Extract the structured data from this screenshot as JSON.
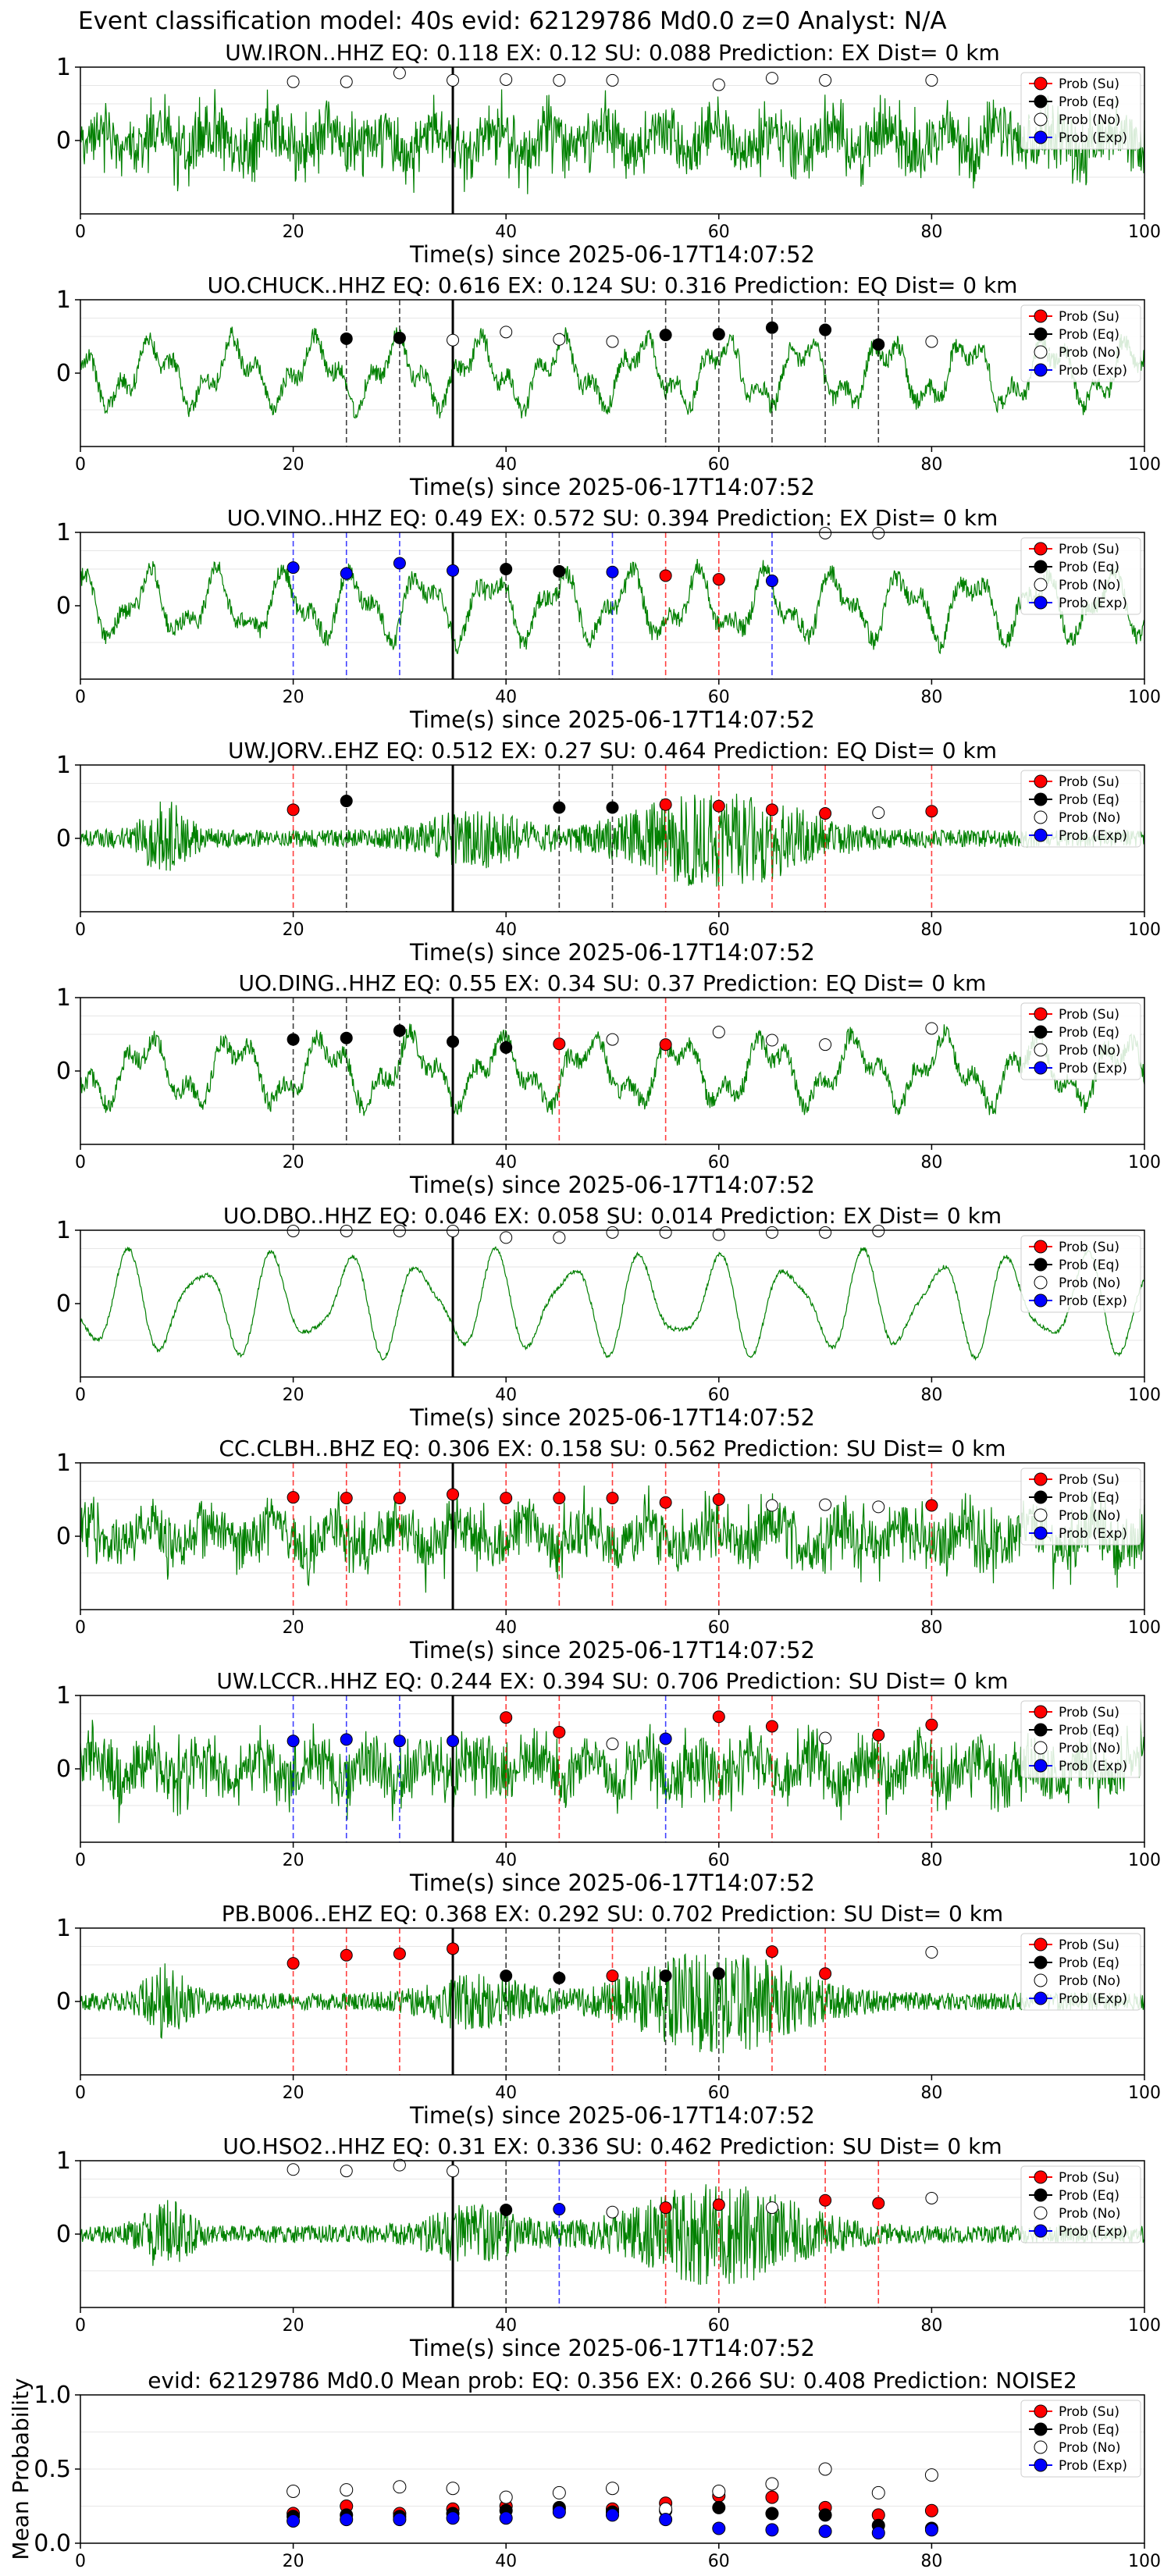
{
  "suptitle": "Event classification model: 40s evid: 62129786 Md0.0 z=0 Analyst: N/A",
  "xlabel": "Time(s) since 2025-06-17T14:07:52",
  "colors": {
    "waveform": "#008000",
    "su": "#ff0000",
    "eq": "#000000",
    "no": "#ffffff",
    "exp": "#0000ff",
    "origin_line": "#000000",
    "grid": "#e6e6e6"
  },
  "legend": {
    "placement": "top-right",
    "labels": [
      "Prob (Su)",
      "Prob (Eq)",
      "Prob (No)",
      "Prob (Exp)"
    ]
  },
  "chart_data": [
    {
      "type": "line",
      "station": "UW.IRON..HHZ",
      "title": "UW.IRON..HHZ   EQ: 0.118   EX: 0.12   SU: 0.088   Prediction: EX    Dist= 0 km",
      "xlim": [
        0,
        100
      ],
      "ylim": [
        -1,
        1
      ],
      "xticks": [
        0,
        20,
        40,
        60,
        80,
        100
      ],
      "yticks": [
        0,
        1
      ],
      "origin_time": 35,
      "waveform_style": "noisy",
      "markers": [
        {
          "t": 20,
          "p": 0.8,
          "cls": "no"
        },
        {
          "t": 25,
          "p": 0.8,
          "cls": "no"
        },
        {
          "t": 30,
          "p": 0.92,
          "cls": "no"
        },
        {
          "t": 35,
          "p": 0.82,
          "cls": "no"
        },
        {
          "t": 40,
          "p": 0.83,
          "cls": "no"
        },
        {
          "t": 45,
          "p": 0.82,
          "cls": "no"
        },
        {
          "t": 50,
          "p": 0.82,
          "cls": "no"
        },
        {
          "t": 60,
          "p": 0.76,
          "cls": "no"
        },
        {
          "t": 65,
          "p": 0.85,
          "cls": "no"
        },
        {
          "t": 70,
          "p": 0.82,
          "cls": "no"
        },
        {
          "t": 80,
          "p": 0.82,
          "cls": "no"
        }
      ]
    },
    {
      "type": "line",
      "station": "UO.CHUCK..HHZ",
      "title": "UO.CHUCK..HHZ   EQ: 0.616   EX: 0.124   SU: 0.316   Prediction: EQ    Dist= 0 km",
      "xlim": [
        0,
        100
      ],
      "ylim": [
        -1,
        1
      ],
      "xticks": [
        0,
        20,
        40,
        60,
        80,
        100
      ],
      "yticks": [
        0,
        1
      ],
      "origin_time": 35,
      "waveform_style": "wavy",
      "markers": [
        {
          "t": 25,
          "p": 0.47,
          "cls": "eq"
        },
        {
          "t": 30,
          "p": 0.48,
          "cls": "eq"
        },
        {
          "t": 35,
          "p": 0.45,
          "cls": "no"
        },
        {
          "t": 40,
          "p": 0.56,
          "cls": "no"
        },
        {
          "t": 45,
          "p": 0.46,
          "cls": "no"
        },
        {
          "t": 50,
          "p": 0.43,
          "cls": "no"
        },
        {
          "t": 55,
          "p": 0.52,
          "cls": "eq"
        },
        {
          "t": 60,
          "p": 0.53,
          "cls": "eq"
        },
        {
          "t": 65,
          "p": 0.62,
          "cls": "eq"
        },
        {
          "t": 70,
          "p": 0.59,
          "cls": "eq"
        },
        {
          "t": 75,
          "p": 0.39,
          "cls": "eq"
        },
        {
          "t": 80,
          "p": 0.43,
          "cls": "no"
        }
      ]
    },
    {
      "type": "line",
      "station": "UO.VINO..HHZ",
      "title": "UO.VINO..HHZ   EQ: 0.49  EX: 0.572  SU: 0.394   Prediction: EX    Dist= 0 km",
      "xlim": [
        0,
        100
      ],
      "ylim": [
        -1,
        1
      ],
      "xticks": [
        0,
        20,
        40,
        60,
        80,
        100
      ],
      "yticks": [
        0,
        1
      ],
      "origin_time": 35,
      "waveform_style": "wavy",
      "markers": [
        {
          "t": 20,
          "p": 0.52,
          "cls": "exp"
        },
        {
          "t": 25,
          "p": 0.44,
          "cls": "exp"
        },
        {
          "t": 30,
          "p": 0.58,
          "cls": "exp"
        },
        {
          "t": 35,
          "p": 0.48,
          "cls": "exp"
        },
        {
          "t": 40,
          "p": 0.5,
          "cls": "eq"
        },
        {
          "t": 45,
          "p": 0.47,
          "cls": "eq"
        },
        {
          "t": 50,
          "p": 0.46,
          "cls": "exp"
        },
        {
          "t": 55,
          "p": 0.41,
          "cls": "su"
        },
        {
          "t": 60,
          "p": 0.36,
          "cls": "su"
        },
        {
          "t": 65,
          "p": 0.34,
          "cls": "exp"
        },
        {
          "t": 70,
          "p": 0.99,
          "cls": "no"
        },
        {
          "t": 75,
          "p": 0.99,
          "cls": "no"
        }
      ]
    },
    {
      "type": "line",
      "station": "UW.JORV..EHZ",
      "title": "UW.JORV..EHZ   EQ: 0.512   EX: 0.27   SU: 0.464   Prediction: EQ    Dist= 0 km",
      "xlim": [
        0,
        100
      ],
      "ylim": [
        -1,
        1
      ],
      "xticks": [
        0,
        20,
        40,
        60,
        80,
        100
      ],
      "yticks": [
        0,
        1
      ],
      "origin_time": 35,
      "waveform_style": "burst",
      "markers": [
        {
          "t": 20,
          "p": 0.39,
          "cls": "su"
        },
        {
          "t": 25,
          "p": 0.51,
          "cls": "eq"
        },
        {
          "t": 45,
          "p": 0.42,
          "cls": "eq"
        },
        {
          "t": 50,
          "p": 0.42,
          "cls": "eq"
        },
        {
          "t": 55,
          "p": 0.46,
          "cls": "su"
        },
        {
          "t": 60,
          "p": 0.44,
          "cls": "su"
        },
        {
          "t": 65,
          "p": 0.39,
          "cls": "su"
        },
        {
          "t": 70,
          "p": 0.34,
          "cls": "su"
        },
        {
          "t": 75,
          "p": 0.35,
          "cls": "no"
        },
        {
          "t": 80,
          "p": 0.37,
          "cls": "su"
        }
      ]
    },
    {
      "type": "line",
      "station": "UO.DING..HHZ",
      "title": "UO.DING..HHZ   EQ: 0.55  EX: 0.34  SU: 0.37   Prediction: EQ    Dist= 0 km",
      "xlim": [
        0,
        100
      ],
      "ylim": [
        -1,
        1
      ],
      "xticks": [
        0,
        20,
        40,
        60,
        80,
        100
      ],
      "yticks": [
        0,
        1
      ],
      "origin_time": 35,
      "waveform_style": "wavy",
      "markers": [
        {
          "t": 20,
          "p": 0.43,
          "cls": "eq"
        },
        {
          "t": 25,
          "p": 0.45,
          "cls": "eq"
        },
        {
          "t": 30,
          "p": 0.55,
          "cls": "eq"
        },
        {
          "t": 35,
          "p": 0.4,
          "cls": "eq"
        },
        {
          "t": 40,
          "p": 0.32,
          "cls": "eq"
        },
        {
          "t": 45,
          "p": 0.37,
          "cls": "su"
        },
        {
          "t": 50,
          "p": 0.43,
          "cls": "no"
        },
        {
          "t": 55,
          "p": 0.36,
          "cls": "su"
        },
        {
          "t": 60,
          "p": 0.53,
          "cls": "no"
        },
        {
          "t": 65,
          "p": 0.42,
          "cls": "no"
        },
        {
          "t": 70,
          "p": 0.36,
          "cls": "no"
        },
        {
          "t": 80,
          "p": 0.58,
          "cls": "no"
        }
      ]
    },
    {
      "type": "line",
      "station": "UO.DBO..HHZ",
      "title": "UO.DBO..HHZ   EQ: 0.046  EX: 0.058  SU: 0.014   Prediction: EX    Dist= 0 km",
      "xlim": [
        0,
        100
      ],
      "ylim": [
        -1,
        1
      ],
      "xticks": [
        0,
        20,
        40,
        60,
        80,
        100
      ],
      "yticks": [
        0,
        1
      ],
      "origin_time": 35,
      "waveform_style": "smooth",
      "markers": [
        {
          "t": 20,
          "p": 0.99,
          "cls": "no"
        },
        {
          "t": 25,
          "p": 0.99,
          "cls": "no"
        },
        {
          "t": 30,
          "p": 0.99,
          "cls": "no"
        },
        {
          "t": 35,
          "p": 0.99,
          "cls": "no"
        },
        {
          "t": 40,
          "p": 0.9,
          "cls": "no"
        },
        {
          "t": 45,
          "p": 0.9,
          "cls": "no"
        },
        {
          "t": 50,
          "p": 0.97,
          "cls": "no"
        },
        {
          "t": 55,
          "p": 0.97,
          "cls": "no"
        },
        {
          "t": 60,
          "p": 0.94,
          "cls": "no"
        },
        {
          "t": 65,
          "p": 0.97,
          "cls": "no"
        },
        {
          "t": 70,
          "p": 0.97,
          "cls": "no"
        },
        {
          "t": 75,
          "p": 0.99,
          "cls": "no"
        }
      ]
    },
    {
      "type": "line",
      "station": "CC.CLBH..BHZ",
      "title": "CC.CLBH..BHZ   EQ: 0.306   EX: 0.158   SU: 0.562   Prediction: SU    Dist= 0 km",
      "xlim": [
        0,
        100
      ],
      "ylim": [
        -1,
        1
      ],
      "xticks": [
        0,
        20,
        40,
        60,
        80,
        100
      ],
      "yticks": [
        0,
        1
      ],
      "origin_time": 35,
      "waveform_style": "noisy",
      "markers": [
        {
          "t": 20,
          "p": 0.53,
          "cls": "su"
        },
        {
          "t": 25,
          "p": 0.52,
          "cls": "su"
        },
        {
          "t": 30,
          "p": 0.52,
          "cls": "su"
        },
        {
          "t": 35,
          "p": 0.57,
          "cls": "su"
        },
        {
          "t": 40,
          "p": 0.52,
          "cls": "su"
        },
        {
          "t": 45,
          "p": 0.52,
          "cls": "su"
        },
        {
          "t": 50,
          "p": 0.52,
          "cls": "su"
        },
        {
          "t": 55,
          "p": 0.46,
          "cls": "su"
        },
        {
          "t": 60,
          "p": 0.5,
          "cls": "su"
        },
        {
          "t": 65,
          "p": 0.42,
          "cls": "no"
        },
        {
          "t": 70,
          "p": 0.43,
          "cls": "no"
        },
        {
          "t": 75,
          "p": 0.4,
          "cls": "no"
        },
        {
          "t": 80,
          "p": 0.42,
          "cls": "su"
        }
      ]
    },
    {
      "type": "line",
      "station": "UW.LCCR..HHZ",
      "title": "UW.LCCR..HHZ   EQ: 0.244   EX: 0.394   SU: 0.706   Prediction: SU    Dist= 0 km",
      "xlim": [
        0,
        100
      ],
      "ylim": [
        -1,
        1
      ],
      "xticks": [
        0,
        20,
        40,
        60,
        80,
        100
      ],
      "yticks": [
        0,
        1
      ],
      "origin_time": 35,
      "waveform_style": "noisy",
      "markers": [
        {
          "t": 20,
          "p": 0.38,
          "cls": "exp"
        },
        {
          "t": 25,
          "p": 0.4,
          "cls": "exp"
        },
        {
          "t": 30,
          "p": 0.38,
          "cls": "exp"
        },
        {
          "t": 35,
          "p": 0.38,
          "cls": "exp"
        },
        {
          "t": 40,
          "p": 0.7,
          "cls": "su"
        },
        {
          "t": 45,
          "p": 0.5,
          "cls": "su"
        },
        {
          "t": 50,
          "p": 0.34,
          "cls": "no"
        },
        {
          "t": 55,
          "p": 0.41,
          "cls": "exp"
        },
        {
          "t": 60,
          "p": 0.71,
          "cls": "su"
        },
        {
          "t": 65,
          "p": 0.58,
          "cls": "su"
        },
        {
          "t": 70,
          "p": 0.42,
          "cls": "no"
        },
        {
          "t": 75,
          "p": 0.46,
          "cls": "su"
        },
        {
          "t": 80,
          "p": 0.6,
          "cls": "su"
        }
      ]
    },
    {
      "type": "line",
      "station": "PB.B006..EHZ",
      "title": "PB.B006..EHZ   EQ: 0.368  EX: 0.292  SU: 0.702   Prediction: SU    Dist= 0 km",
      "xlim": [
        0,
        100
      ],
      "ylim": [
        -1,
        1
      ],
      "xticks": [
        0,
        20,
        40,
        60,
        80,
        100
      ],
      "yticks": [
        0,
        1
      ],
      "origin_time": 35,
      "waveform_style": "burst",
      "markers": [
        {
          "t": 20,
          "p": 0.52,
          "cls": "su"
        },
        {
          "t": 25,
          "p": 0.63,
          "cls": "su"
        },
        {
          "t": 30,
          "p": 0.65,
          "cls": "su"
        },
        {
          "t": 35,
          "p": 0.72,
          "cls": "su"
        },
        {
          "t": 40,
          "p": 0.35,
          "cls": "eq"
        },
        {
          "t": 45,
          "p": 0.32,
          "cls": "eq"
        },
        {
          "t": 50,
          "p": 0.35,
          "cls": "su"
        },
        {
          "t": 55,
          "p": 0.35,
          "cls": "eq"
        },
        {
          "t": 60,
          "p": 0.38,
          "cls": "eq"
        },
        {
          "t": 65,
          "p": 0.68,
          "cls": "su"
        },
        {
          "t": 70,
          "p": 0.38,
          "cls": "su"
        },
        {
          "t": 80,
          "p": 0.67,
          "cls": "no"
        }
      ]
    },
    {
      "type": "line",
      "station": "UO.HSO2..HHZ",
      "title": "UO.HSO2..HHZ   EQ: 0.31  EX: 0.336  SU: 0.462   Prediction: SU    Dist= 0 km",
      "xlim": [
        0,
        100
      ],
      "ylim": [
        -1,
        1
      ],
      "xticks": [
        0,
        20,
        40,
        60,
        80,
        100
      ],
      "yticks": [
        0,
        1
      ],
      "origin_time": 35,
      "waveform_style": "burst",
      "markers": [
        {
          "t": 20,
          "p": 0.88,
          "cls": "no"
        },
        {
          "t": 25,
          "p": 0.86,
          "cls": "no"
        },
        {
          "t": 30,
          "p": 0.94,
          "cls": "no"
        },
        {
          "t": 35,
          "p": 0.86,
          "cls": "no"
        },
        {
          "t": 40,
          "p": 0.33,
          "cls": "eq"
        },
        {
          "t": 45,
          "p": 0.34,
          "cls": "exp"
        },
        {
          "t": 50,
          "p": 0.3,
          "cls": "no"
        },
        {
          "t": 55,
          "p": 0.36,
          "cls": "su"
        },
        {
          "t": 60,
          "p": 0.4,
          "cls": "su"
        },
        {
          "t": 65,
          "p": 0.36,
          "cls": "no"
        },
        {
          "t": 70,
          "p": 0.46,
          "cls": "su"
        },
        {
          "t": 75,
          "p": 0.42,
          "cls": "su"
        },
        {
          "t": 80,
          "p": 0.49,
          "cls": "no"
        }
      ]
    },
    {
      "type": "scatter",
      "station": "mean",
      "title": "evid: 62129786  Md0.0   Mean prob:   EQ: 0.356  EX: 0.266  SU: 0.408   Prediction: NOISE2",
      "ylabel": "Mean Probability",
      "xlim": [
        0,
        100
      ],
      "ylim": [
        0,
        1
      ],
      "xticks": [
        0,
        20,
        40,
        60,
        80,
        100
      ],
      "yticks": [
        0,
        0.5,
        1
      ],
      "ytick_labels": [
        "0.0",
        "0.5",
        "1.0"
      ],
      "series": [
        {
          "name": "Prob (Su)",
          "cls": "su",
          "x": [
            20,
            25,
            30,
            35,
            40,
            45,
            50,
            55,
            60,
            65,
            70,
            75,
            80
          ],
          "y": [
            0.2,
            0.25,
            0.2,
            0.23,
            0.25,
            0.23,
            0.23,
            0.27,
            0.32,
            0.31,
            0.24,
            0.19,
            0.22
          ]
        },
        {
          "name": "Prob (Eq)",
          "cls": "eq",
          "x": [
            20,
            25,
            30,
            35,
            40,
            45,
            50,
            55,
            60,
            65,
            70,
            75,
            80
          ],
          "y": [
            0.18,
            0.19,
            0.18,
            0.2,
            0.22,
            0.24,
            0.21,
            0.22,
            0.24,
            0.2,
            0.19,
            0.12,
            0.1
          ]
        },
        {
          "name": "Prob (No)",
          "cls": "no",
          "x": [
            20,
            25,
            30,
            35,
            40,
            45,
            50,
            55,
            60,
            65,
            70,
            75,
            80
          ],
          "y": [
            0.35,
            0.36,
            0.38,
            0.37,
            0.31,
            0.34,
            0.37,
            0.23,
            0.35,
            0.4,
            0.5,
            0.34,
            0.46
          ]
        },
        {
          "name": "Prob (Exp)",
          "cls": "exp",
          "x": [
            20,
            25,
            30,
            35,
            40,
            45,
            50,
            55,
            60,
            65,
            70,
            75,
            80
          ],
          "y": [
            0.15,
            0.16,
            0.16,
            0.17,
            0.17,
            0.21,
            0.19,
            0.16,
            0.1,
            0.09,
            0.08,
            0.07,
            0.09
          ]
        }
      ]
    }
  ]
}
